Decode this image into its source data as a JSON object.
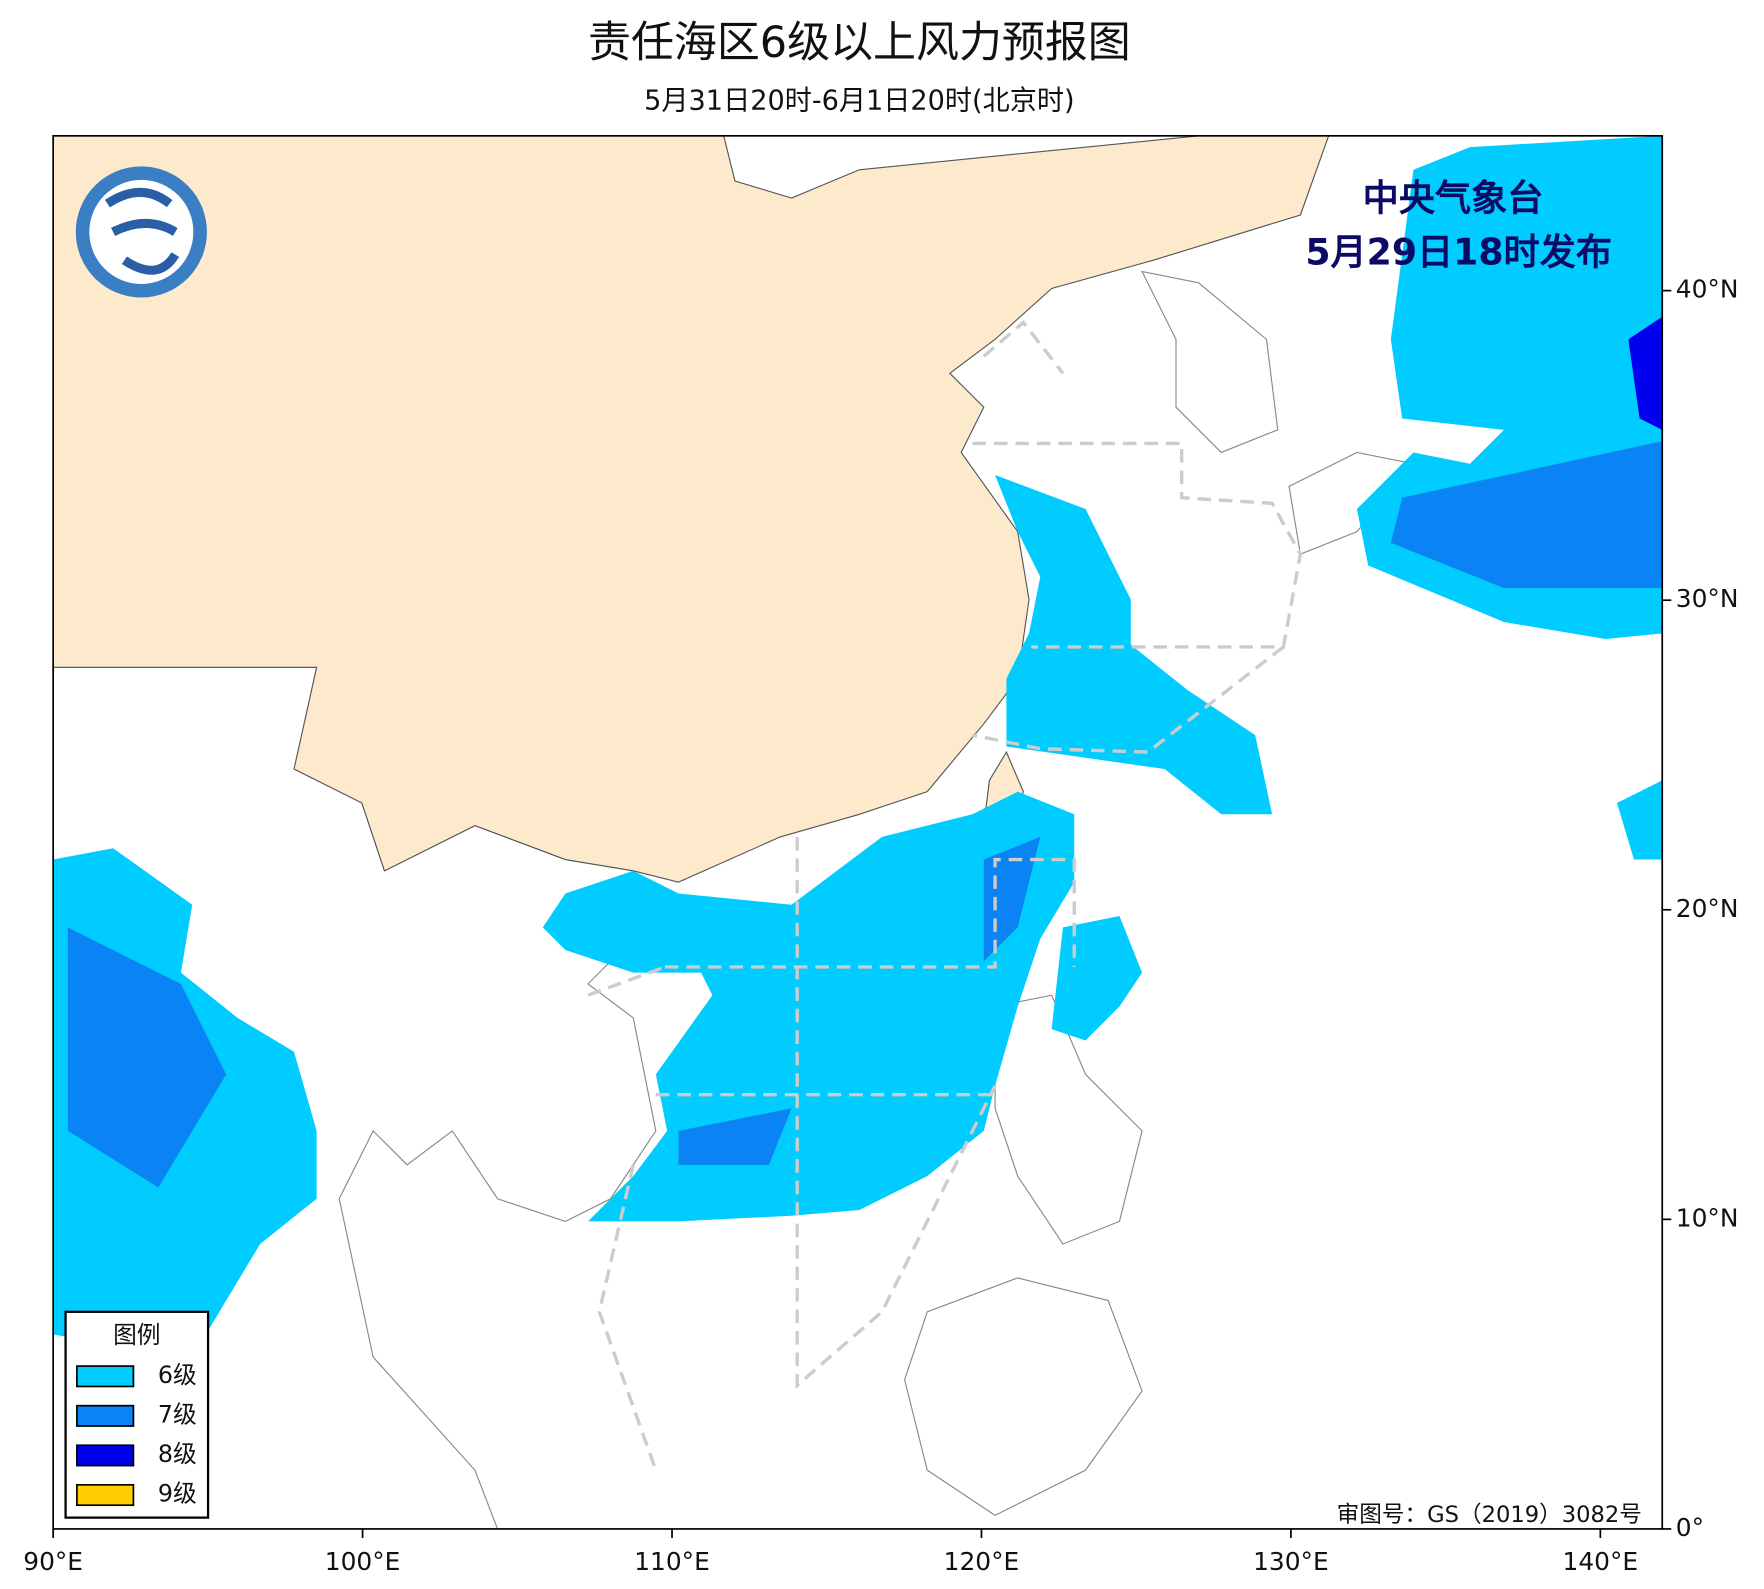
{
  "header": {
    "title": "责任海区6级以上风力预报图",
    "subtitle": "5月31日20时-6月1日20时(北京时)"
  },
  "issuer": {
    "name": "中央气象台",
    "time": "5月29日18时发布"
  },
  "map": {
    "xlim": [
      90,
      142
    ],
    "ylim": [
      0,
      45
    ],
    "xticks": [
      {
        "value": 90,
        "label": "90°E"
      },
      {
        "value": 100,
        "label": "100°E"
      },
      {
        "value": 110,
        "label": "110°E"
      },
      {
        "value": 120,
        "label": "120°E"
      },
      {
        "value": 130,
        "label": "130°E"
      },
      {
        "value": 140,
        "label": "140°E"
      }
    ],
    "yticks": [
      {
        "value": 0,
        "label": "0°"
      },
      {
        "value": 10,
        "label": "10°N"
      },
      {
        "value": 20,
        "label": "20°N"
      },
      {
        "value": 30,
        "label": "30°N"
      },
      {
        "value": 40,
        "label": "40°N"
      }
    ]
  },
  "legend": {
    "title": "图例",
    "items": [
      {
        "label": "6级",
        "color": "#00ccff"
      },
      {
        "label": "7级",
        "color": "#0a84f5"
      },
      {
        "label": "8级",
        "color": "#0000ee"
      },
      {
        "label": "9级",
        "color": "#ffcc00"
      }
    ]
  },
  "approval": "审图号：GS（2019）3082号"
}
